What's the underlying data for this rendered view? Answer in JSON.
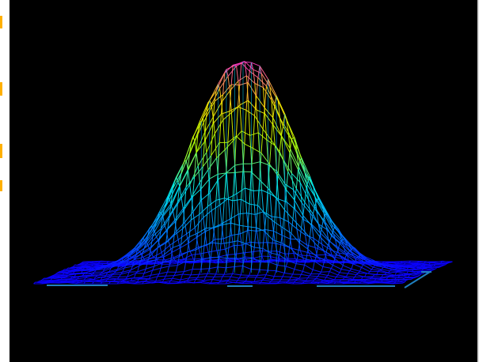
{
  "chart_data": {
    "type": "surface",
    "function": "gaussian",
    "title": "",
    "xlabel": "",
    "ylabel": "",
    "zlabel": "",
    "grid": false,
    "legend": "none",
    "x_range": [
      -3,
      3
    ],
    "y_range": [
      -3,
      3
    ],
    "z_range": [
      0,
      1
    ],
    "mesh": {
      "x_steps": 44,
      "y_steps": 30
    },
    "gaussian": {
      "amplitude": 1,
      "sigma": 0.85,
      "mean_x": 0,
      "mean_y": 0
    },
    "noise": 0.035,
    "colormap": [
      "#0b00ff",
      "#0087ff",
      "#00f0f0",
      "#b6ff00",
      "#ffe600",
      "#ff2ad7"
    ],
    "axis_color": "#1f7fbf",
    "background": "#000000"
  },
  "ui": {
    "left_marks_color": "#ffb000"
  }
}
